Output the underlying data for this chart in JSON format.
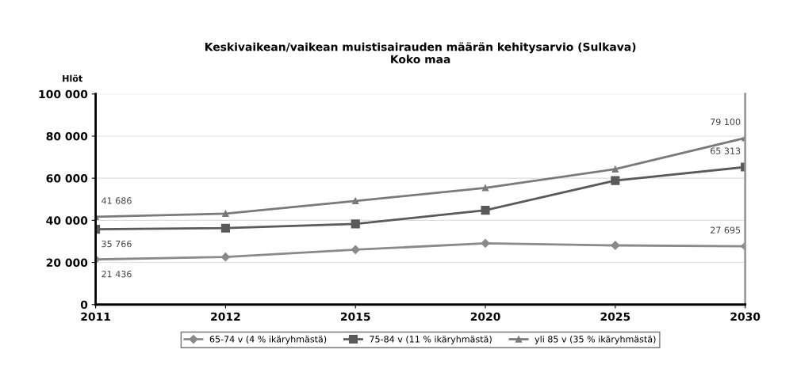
{
  "chart_data": {
    "type": "line",
    "title": "Keskivaikean/vaikean muistisairauden määrän kehitysarvio (Sulkava)\nKoko maa",
    "ylabel": "Hlöt",
    "categories": [
      "2011",
      "2012",
      "2015",
      "2020",
      "2025",
      "2030"
    ],
    "series": [
      {
        "name": "65-74 v (4 % ikäryhmästä)",
        "color": "#8a8a8a",
        "marker": "diamond",
        "values": [
          21436,
          22600,
          26050,
          29100,
          28100,
          27695
        ],
        "value_labels": [
          "21 436",
          null,
          null,
          null,
          null,
          "27 695"
        ]
      },
      {
        "name": "75-84 v (11 % ikäryhmästä)",
        "color": "#5a5a5a",
        "marker": "square",
        "values": [
          35766,
          36300,
          38300,
          44800,
          58900,
          65313
        ],
        "value_labels": [
          "35 766",
          null,
          null,
          null,
          null,
          "65 313"
        ]
      },
      {
        "name": "yli 85 v (35 % ikäryhmästä)",
        "color": "#7a7a7a",
        "marker": "triangle",
        "values": [
          41686,
          43200,
          49200,
          55400,
          64300,
          79100
        ],
        "value_labels": [
          "41 686",
          null,
          null,
          null,
          null,
          "79 100"
        ]
      }
    ],
    "ylim": [
      0,
      100000
    ],
    "yticks": [
      {
        "value": 0,
        "label": "0"
      },
      {
        "value": 20000,
        "label": "20 000"
      },
      {
        "value": 40000,
        "label": "40 000"
      },
      {
        "value": 60000,
        "label": "60 000"
      },
      {
        "value": 80000,
        "label": "80 000"
      },
      {
        "value": 100000,
        "label": "100 000"
      }
    ],
    "grid": "y",
    "legend": "bottom",
    "line_style": "solid"
  }
}
